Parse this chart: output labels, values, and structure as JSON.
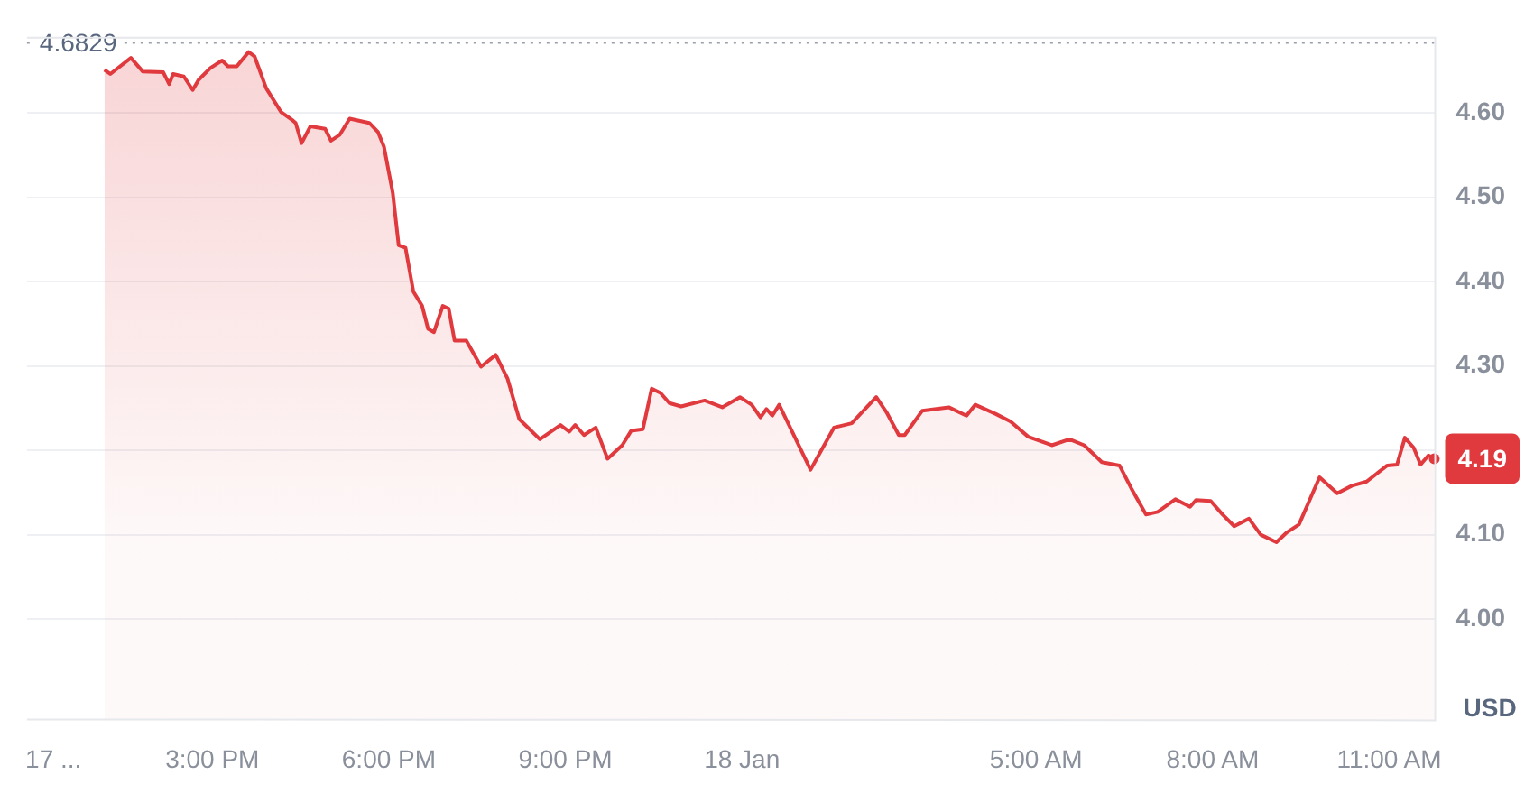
{
  "chart_data": {
    "type": "area",
    "ylabel": "USD",
    "color": "#e03a3e",
    "x": [
      "--01-17T13:10",
      "--01-17T13:16",
      "--01-17T13:37",
      "--01-17T13:49",
      "--01-17T14:10",
      "--01-17T14:16",
      "--01-17T14:20",
      "--01-17T14:31",
      "--01-17T14:40",
      "--01-17T14:46",
      "--01-17T14:58",
      "--01-17T15:10",
      "--01-17T15:16",
      "--01-17T15:25",
      "--01-17T15:37",
      "--01-17T15:43",
      "--01-17T15:55",
      "--01-17T16:10",
      "--01-17T16:22",
      "--01-17T16:25",
      "--01-17T16:31",
      "--01-17T16:40",
      "--01-17T16:55",
      "--01-17T17:01",
      "--01-17T17:10",
      "--01-17T17:20",
      "--01-17T17:40",
      "--01-17T17:49",
      "--01-17T17:55",
      "--01-17T18:04",
      "--01-17T18:10",
      "--01-17T18:17",
      "--01-17T18:25",
      "--01-17T18:34",
      "--01-17T18:40",
      "--01-17T18:46",
      "--01-17T18:55",
      "--01-17T19:01",
      "--01-17T19:07",
      "--01-17T19:19",
      "--01-17T19:34",
      "--01-17T19:49",
      "--01-17T20:01",
      "--01-17T20:13",
      "--01-17T20:34",
      "--01-17T20:55",
      "--01-17T21:04",
      "--01-17T21:10",
      "--01-17T21:19",
      "--01-17T21:31",
      "--01-17T21:43",
      "--01-17T21:58",
      "--01-17T22:07",
      "--01-17T22:19",
      "--01-17T22:28",
      "--01-17T22:37",
      "--01-17T22:46",
      "--01-17T22:58",
      "--01-17T23:22",
      "--01-17T23:40",
      "--01-17T23:58",
      "--01-18T00:10",
      "--01-18T00:19",
      "--01-18T00:25",
      "--01-18T00:31",
      "--01-18T00:38",
      "--01-18T01:10",
      "--01-18T01:34",
      "--01-18T01:52",
      "--01-18T02:04",
      "--01-18T02:17",
      "--01-18T02:28",
      "--01-18T02:40",
      "--01-18T02:46",
      "--01-18T03:04",
      "--01-18T03:31",
      "--01-18T03:49",
      "--01-18T03:58",
      "--01-18T04:19",
      "--01-18T04:34",
      "--01-18T04:52",
      "--01-18T05:16",
      "--01-18T05:34",
      "--01-18T05:49",
      "--01-18T06:07",
      "--01-18T06:25",
      "--01-18T06:37",
      "--01-18T06:52",
      "--01-18T07:04",
      "--01-18T07:22",
      "--01-18T07:37",
      "--01-18T07:43",
      "--01-18T07:58",
      "--01-18T08:10",
      "--01-18T08:22",
      "--01-18T08:37",
      "--01-18T08:49",
      "--01-18T09:05",
      "--01-18T09:16",
      "--01-18T09:28",
      "--01-18T09:49",
      "--01-18T10:07",
      "--01-18T10:22",
      "--01-18T10:37",
      "--01-18T10:58",
      "--01-18T11:08",
      "--01-18T11:16",
      "--01-18T11:25",
      "--01-18T11:32",
      "--01-18T11:40",
      "--01-18T11:46"
    ],
    "values": [
      4.651,
      4.646,
      4.665,
      4.649,
      4.648,
      4.634,
      4.646,
      4.643,
      4.627,
      4.639,
      4.653,
      4.662,
      4.655,
      4.655,
      4.672,
      4.667,
      4.629,
      4.601,
      4.591,
      4.588,
      4.564,
      4.584,
      4.581,
      4.567,
      4.574,
      4.593,
      4.588,
      4.577,
      4.56,
      4.505,
      4.443,
      4.44,
      4.388,
      4.371,
      4.344,
      4.34,
      4.371,
      4.368,
      4.33,
      4.33,
      4.299,
      4.313,
      4.285,
      4.237,
      4.213,
      4.23,
      4.222,
      4.23,
      4.218,
      4.227,
      4.19,
      4.206,
      4.223,
      4.225,
      4.273,
      4.268,
      4.256,
      4.252,
      4.259,
      4.251,
      4.263,
      4.254,
      4.239,
      4.249,
      4.241,
      4.254,
      4.177,
      4.227,
      4.232,
      4.247,
      4.263,
      4.244,
      4.218,
      4.218,
      4.247,
      4.251,
      4.241,
      4.254,
      4.243,
      4.234,
      4.216,
      4.206,
      4.213,
      4.206,
      4.186,
      4.182,
      4.155,
      4.124,
      4.127,
      4.142,
      4.133,
      4.141,
      4.14,
      4.124,
      4.11,
      4.119,
      4.1,
      4.091,
      4.103,
      4.112,
      4.168,
      4.149,
      4.158,
      4.163,
      4.182,
      4.183,
      4.215,
      4.203,
      4.183,
      4.194,
      4.19
    ],
    "xlim": [
      "--01-17T11:51",
      "--01-18T11:46"
    ],
    "xticks": [
      {
        "value": "--01-17T12:18",
        "label": "17 ..."
      },
      {
        "value": "--01-17T15:00",
        "label": "3:00 PM"
      },
      {
        "value": "--01-17T18:00",
        "label": "6:00 PM"
      },
      {
        "value": "--01-17T21:00",
        "label": "9:00 PM"
      },
      {
        "value": "--01-18T00:00",
        "label": "18 Jan"
      },
      {
        "value": "--01-18T05:00",
        "label": "5:00 AM"
      },
      {
        "value": "--01-18T08:00",
        "label": "8:00 AM"
      },
      {
        "value": "--01-18T11:00",
        "label": "11:00 AM"
      }
    ],
    "ylim": [
      3.88,
      4.69
    ],
    "yticks": [
      {
        "value": 4.0,
        "label": "4.00"
      },
      {
        "value": 4.1,
        "label": "4.10"
      },
      {
        "value": 4.2,
        "label": null
      },
      {
        "value": 4.3,
        "label": "4.30"
      },
      {
        "value": 4.4,
        "label": "4.40"
      },
      {
        "value": 4.5,
        "label": "4.50"
      },
      {
        "value": 4.6,
        "label": "4.60"
      }
    ],
    "grid": "y",
    "legend": false,
    "ref_lines": [
      {
        "axis": "y",
        "value": 4.6829,
        "label": "4.6829",
        "line_style": "dotted",
        "color": "#9aa0aa"
      }
    ],
    "annotations": [
      {
        "text": "4.19",
        "x": "--01-18T11:46",
        "y": 4.19
      }
    ]
  }
}
